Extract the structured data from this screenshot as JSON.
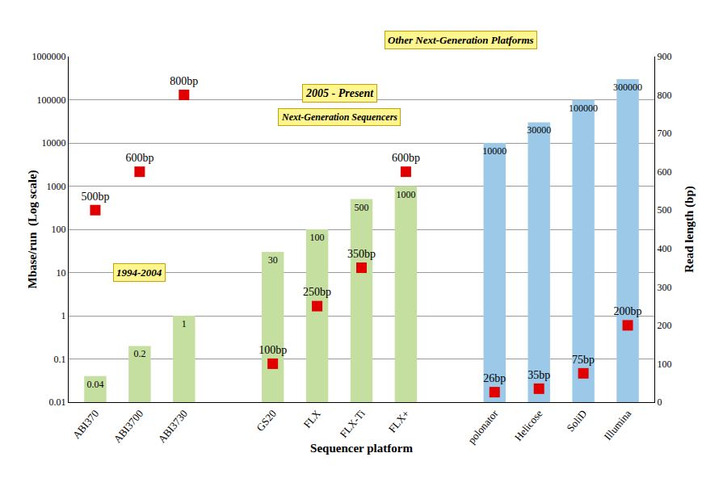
{
  "chart_data": {
    "type": "bar",
    "x_label": "Sequencer platform",
    "y_label": "Mbase/run  (Log scale)",
    "y2_label": "Read length (bp)",
    "categories": [
      "ABI370",
      "ABI3700",
      "ABI3730",
      null,
      "GS20",
      "FLX",
      "FLX-Ti",
      "FLX+",
      null,
      "polonator",
      "Helicose",
      "SoliD",
      "Illumina"
    ],
    "series": [
      {
        "type": "bar",
        "axis": "y",
        "values": [
          0.04,
          0.2,
          1,
          null,
          30,
          100,
          500,
          1000,
          null,
          10000,
          30000,
          100000,
          300000
        ],
        "colors": [
          "#c5dfa0",
          "#c5dfa0",
          "#c5dfa0",
          null,
          "#c5dfa0",
          "#c5dfa0",
          "#c5dfa0",
          "#c5dfa0",
          null,
          "#9cc9e8",
          "#9cc9e8",
          "#9cc9e8",
          "#9cc9e8"
        ],
        "data_labels": true
      },
      {
        "type": "scatter",
        "axis": "y2",
        "marker": "square",
        "color": "#e00000",
        "values": [
          500,
          600,
          800,
          null,
          100,
          250,
          350,
          600,
          null,
          26,
          35,
          75,
          200
        ],
        "value_labels": [
          "500bp",
          "600bp",
          "800bp",
          null,
          "100bp",
          "250bp",
          "350bp",
          "600bp",
          null,
          "26bp",
          "35bp",
          "75bp",
          "200bp"
        ],
        "data_labels": true
      }
    ],
    "log": "y",
    "ylim": [
      0.01,
      1000000
    ],
    "yticks": [
      0.01,
      0.1,
      1,
      10,
      100,
      1000,
      10000,
      100000,
      1000000
    ],
    "y2lim": [
      0,
      900
    ],
    "y2ticks": [
      0,
      100,
      200,
      300,
      400,
      500,
      600,
      700,
      800,
      900
    ],
    "grid": true,
    "annotations": [
      "1994-2004",
      "2005 - Present",
      "Next-Generation Sequencers",
      "Other Next-Generation Platforms"
    ]
  }
}
